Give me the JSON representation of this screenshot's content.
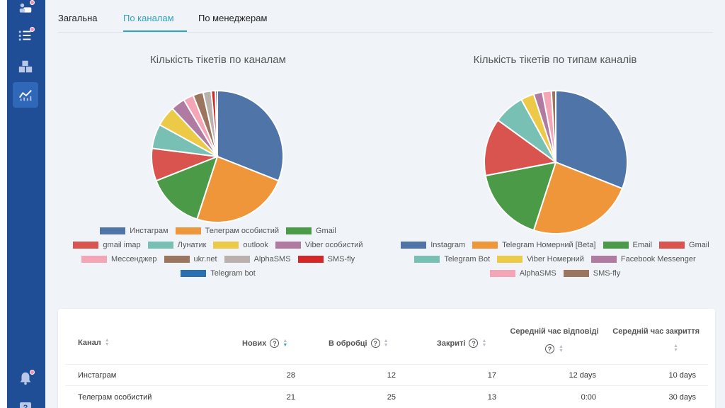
{
  "tabs": [
    {
      "label": "Загальна"
    },
    {
      "label": "По каналам"
    },
    {
      "label": "По менеджерам"
    }
  ],
  "colors": {
    "sidebar": "#1f4e96",
    "accent": "#2ea3c0",
    "badge": "#f08cb5"
  },
  "chart_data": [
    {
      "type": "pie",
      "title": "Кількість тікетів по каналам",
      "categories": [
        "Инстаграм",
        "Телеграм особистий",
        "Gmail",
        "gmail imap",
        "Лунатик",
        "outlook",
        "Viber особистий",
        "Мессенджер",
        "ukr.net",
        "AlphaSMS",
        "SMS-fly",
        "Telegram bot"
      ],
      "values": [
        31,
        24,
        14,
        8,
        6,
        5,
        3.5,
        2.5,
        2.5,
        2,
        1,
        0.5
      ],
      "colors": [
        "#4f75a8",
        "#f0963a",
        "#4a9a47",
        "#d9534f",
        "#78bfb4",
        "#edc948",
        "#b07aa1",
        "#f4a6b7",
        "#9c755f",
        "#bab0ac",
        "#d62728",
        "#2a6fb0"
      ],
      "legend": "bottom"
    },
    {
      "type": "pie",
      "title": "Кількість тікетів по типам каналів",
      "categories": [
        "Instagram",
        "Telegram Номерний [Beta]",
        "Email",
        "Gmail",
        "Telegram Bot",
        "Viber Номерний",
        "Facebook Messenger",
        "AlphaSMS",
        "SMS-fly"
      ],
      "values": [
        31,
        24,
        17,
        13,
        7,
        3,
        2,
        2,
        1
      ],
      "colors": [
        "#4f75a8",
        "#f0963a",
        "#4a9a47",
        "#d9534f",
        "#78bfb4",
        "#edc948",
        "#b07aa1",
        "#f4a6b7",
        "#9c755f"
      ],
      "legend": "bottom"
    }
  ],
  "table": {
    "headers": {
      "channel": "Канал",
      "new": "Нових",
      "processing": "В обробці",
      "closed": "Закриті",
      "avg_response": "Середній час відповіді",
      "avg_close": "Середній час закриття"
    },
    "rows": [
      {
        "channel": "Инстаграм",
        "new": "28",
        "processing": "12",
        "closed": "17",
        "avg_response": "12 days",
        "avg_close": "10 days"
      },
      {
        "channel": "Телеграм особистий",
        "new": "21",
        "processing": "25",
        "closed": "13",
        "avg_response": "0:00",
        "avg_close": "30 days"
      }
    ]
  },
  "help_glyph": "?",
  "help_button_label": "?"
}
